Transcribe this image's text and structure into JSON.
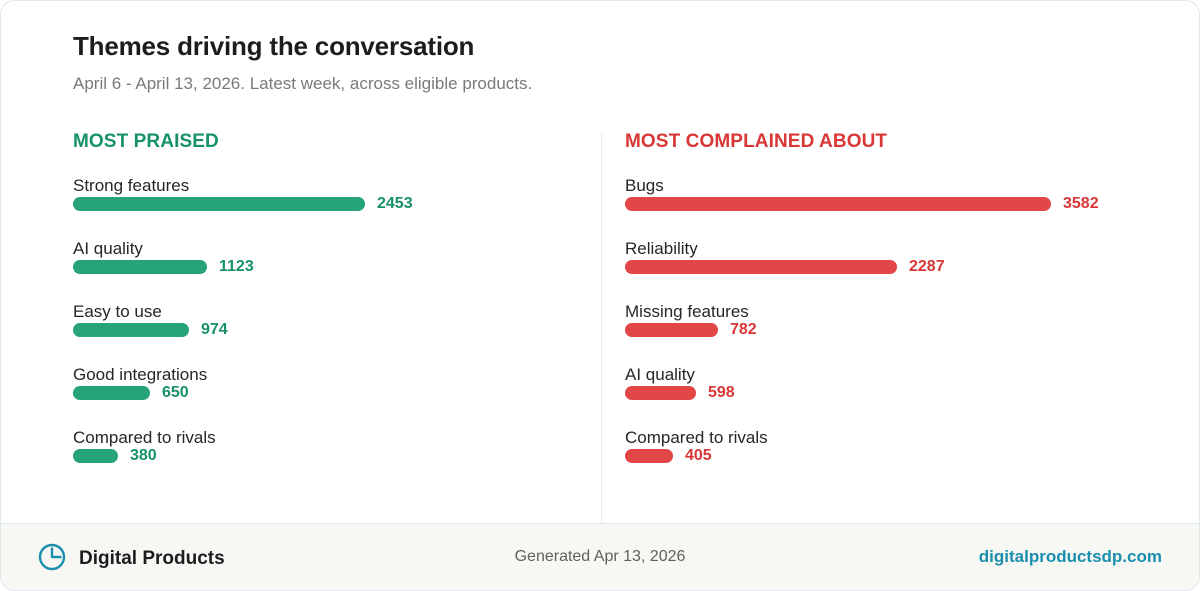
{
  "header": {
    "title": "Themes driving the conversation",
    "subtitle": "April 6 - April 13, 2026. Latest week, across eligible products."
  },
  "chart_data": [
    {
      "type": "bar",
      "orientation": "horizontal",
      "title": "MOST PRAISED",
      "color": "#27a37c",
      "label_color": "#16916a",
      "categories": [
        "Strong features",
        "AI quality",
        "Easy to use",
        "Good integrations",
        "Compared to rivals"
      ],
      "values": [
        2453,
        1123,
        974,
        650,
        380
      ],
      "xlim": [
        0,
        3582
      ]
    },
    {
      "type": "bar",
      "orientation": "horizontal",
      "title": "MOST COMPLAINED ABOUT",
      "color": "#e24646",
      "label_color": "#d93636",
      "categories": [
        "Bugs",
        "Reliability",
        "Missing features",
        "AI quality",
        "Compared to rivals"
      ],
      "values": [
        3582,
        2287,
        782,
        598,
        405
      ],
      "xlim": [
        0,
        3582
      ]
    }
  ],
  "footer": {
    "brand": "Digital Products",
    "brand_icon": "pie-chart-icon",
    "generated": "Generated Apr 13, 2026",
    "site": "digitalproductsdp.com"
  }
}
